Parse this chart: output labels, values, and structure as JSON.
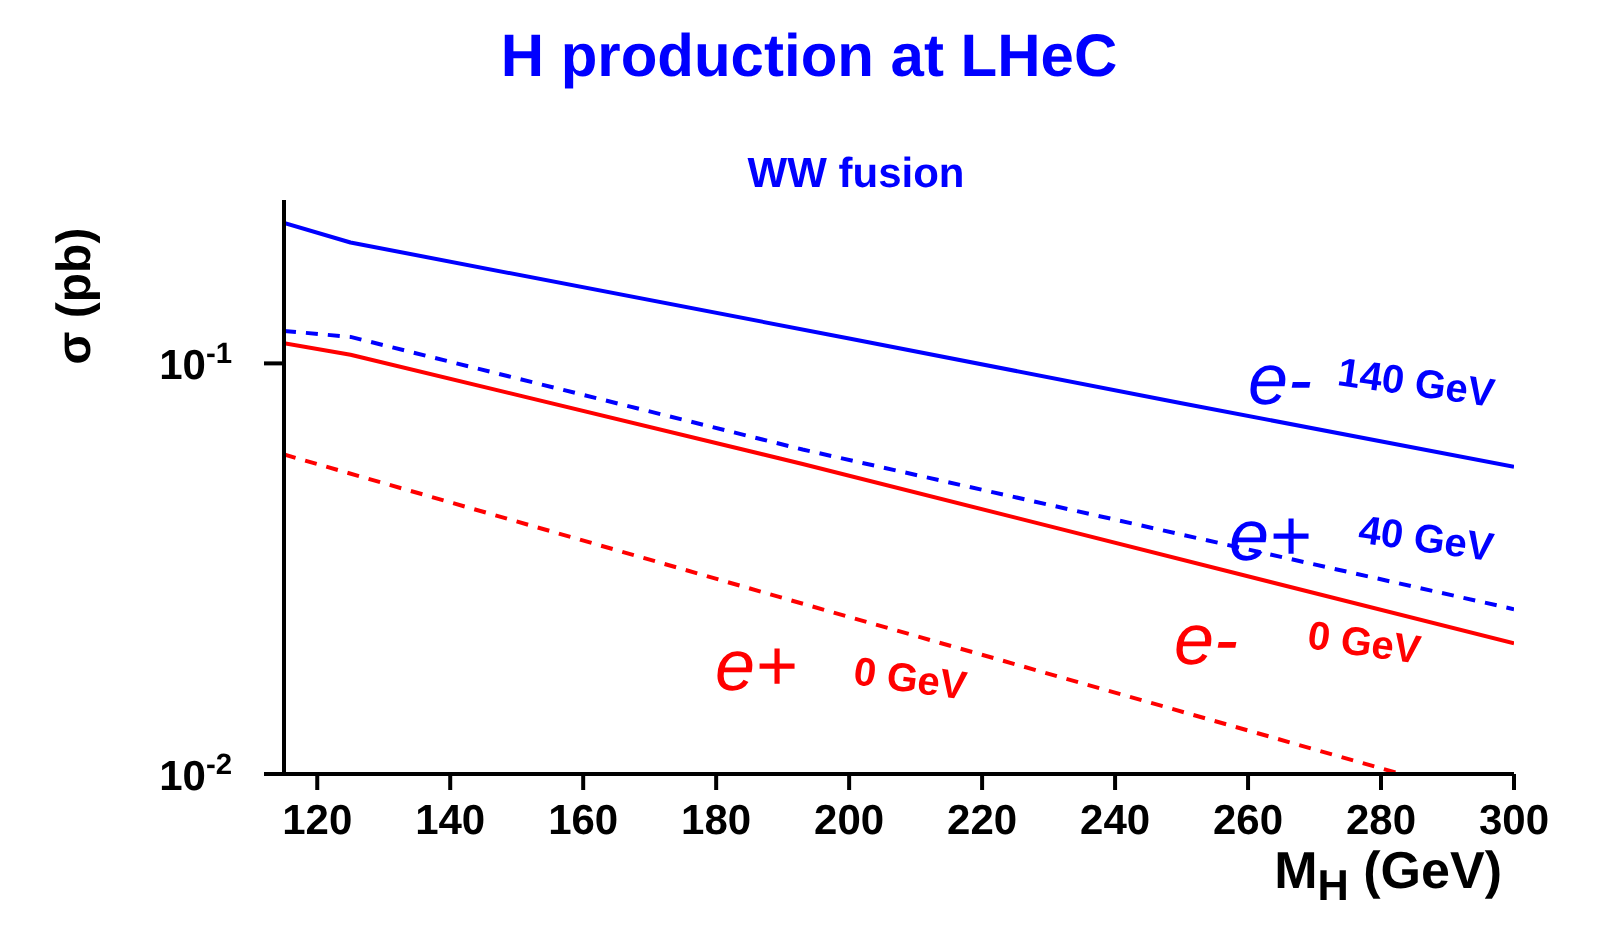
{
  "chart_data": {
    "type": "line",
    "title": "H production at LHeC",
    "xlabel": "M$_{H}$ (GeV)",
    "ylabel": "σ (pb)",
    "annotations": [
      "WW fusion",
      "e-",
      "140 GeV",
      "e+",
      "40 GeV",
      "e-",
      "0 GeV",
      "e+",
      "0 GeV"
    ],
    "series": [
      {
        "color": "#0000ff",
        "line_style": "solid",
        "x": [
          115,
          125,
          200,
          250,
          300
        ],
        "values": [
          0.22,
          0.197,
          0.115,
          0.08,
          0.056
        ]
      },
      {
        "color": "#0000ff",
        "line_style": "dashed",
        "x": [
          115,
          125,
          193,
          300
        ],
        "values": [
          0.12,
          0.116,
          0.0617,
          0.0252
        ]
      },
      {
        "color": "#ff0000",
        "line_style": "solid",
        "x": [
          115,
          125,
          193,
          300
        ],
        "values": [
          0.112,
          0.105,
          0.0569,
          0.0208
        ]
      },
      {
        "color": "#ff0000",
        "line_style": "dashed",
        "x": [
          115,
          197,
          283
        ],
        "values": [
          0.06,
          0.0249,
          0.01
        ]
      }
    ],
    "log": "y",
    "xlim": [
      115,
      300
    ],
    "ylim": [
      0.01,
      0.25
    ],
    "xticks": [
      120,
      140,
      160,
      180,
      200,
      220,
      240,
      260,
      280,
      300
    ],
    "yticks": [
      {
        "value": 0.01,
        "label": "10$^{-2}$"
      },
      {
        "value": 0.1,
        "label": "10$^{-1}$"
      }
    ],
    "grid": false,
    "marker": "none"
  }
}
